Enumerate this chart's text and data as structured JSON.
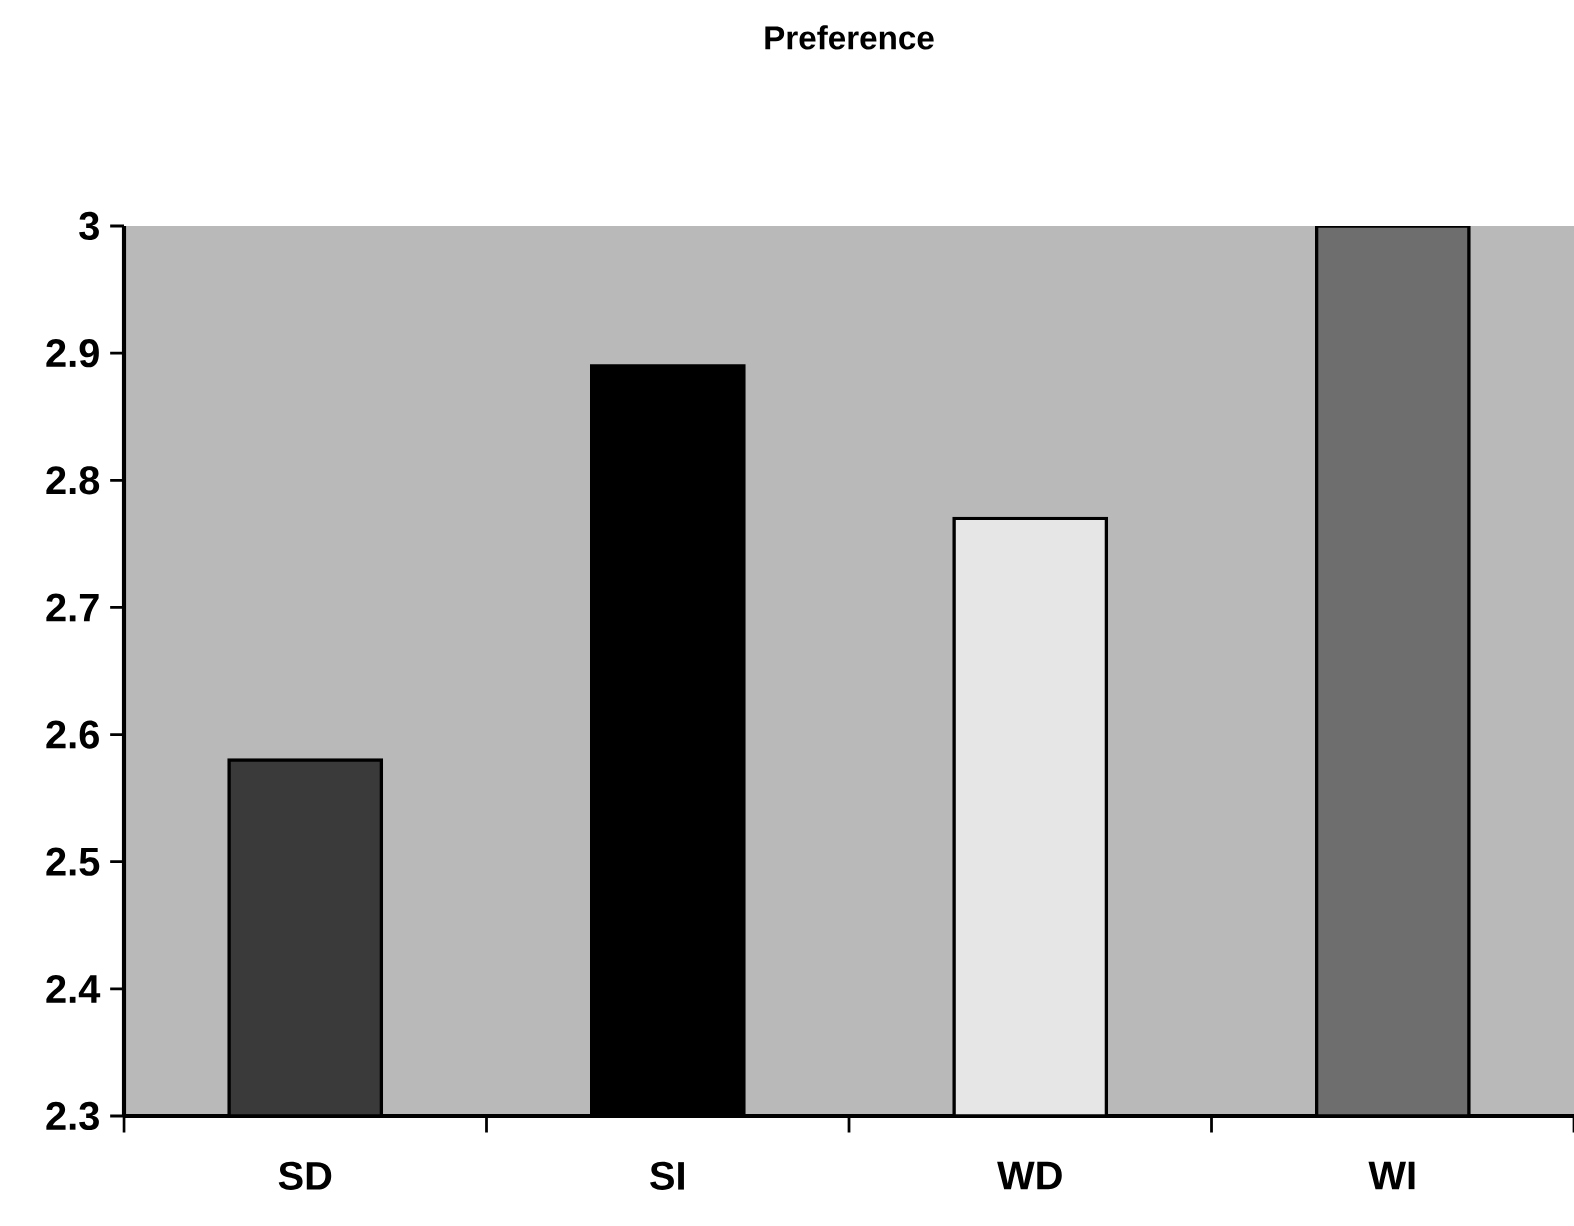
{
  "chart_data": {
    "type": "bar",
    "title": "Preference",
    "categories": [
      "SD",
      "SI",
      "WD",
      "WI"
    ],
    "values": [
      2.58,
      2.89,
      2.77,
      3.0
    ],
    "colors": [
      "#3a3a3a",
      "#000000",
      "#e6e6e6",
      "#6e6e6e"
    ],
    "ylim": [
      2.3,
      3
    ],
    "yticks": [
      2.3,
      2.4,
      2.5,
      2.6,
      2.7,
      2.8,
      2.9,
      3
    ],
    "grid": false
  }
}
